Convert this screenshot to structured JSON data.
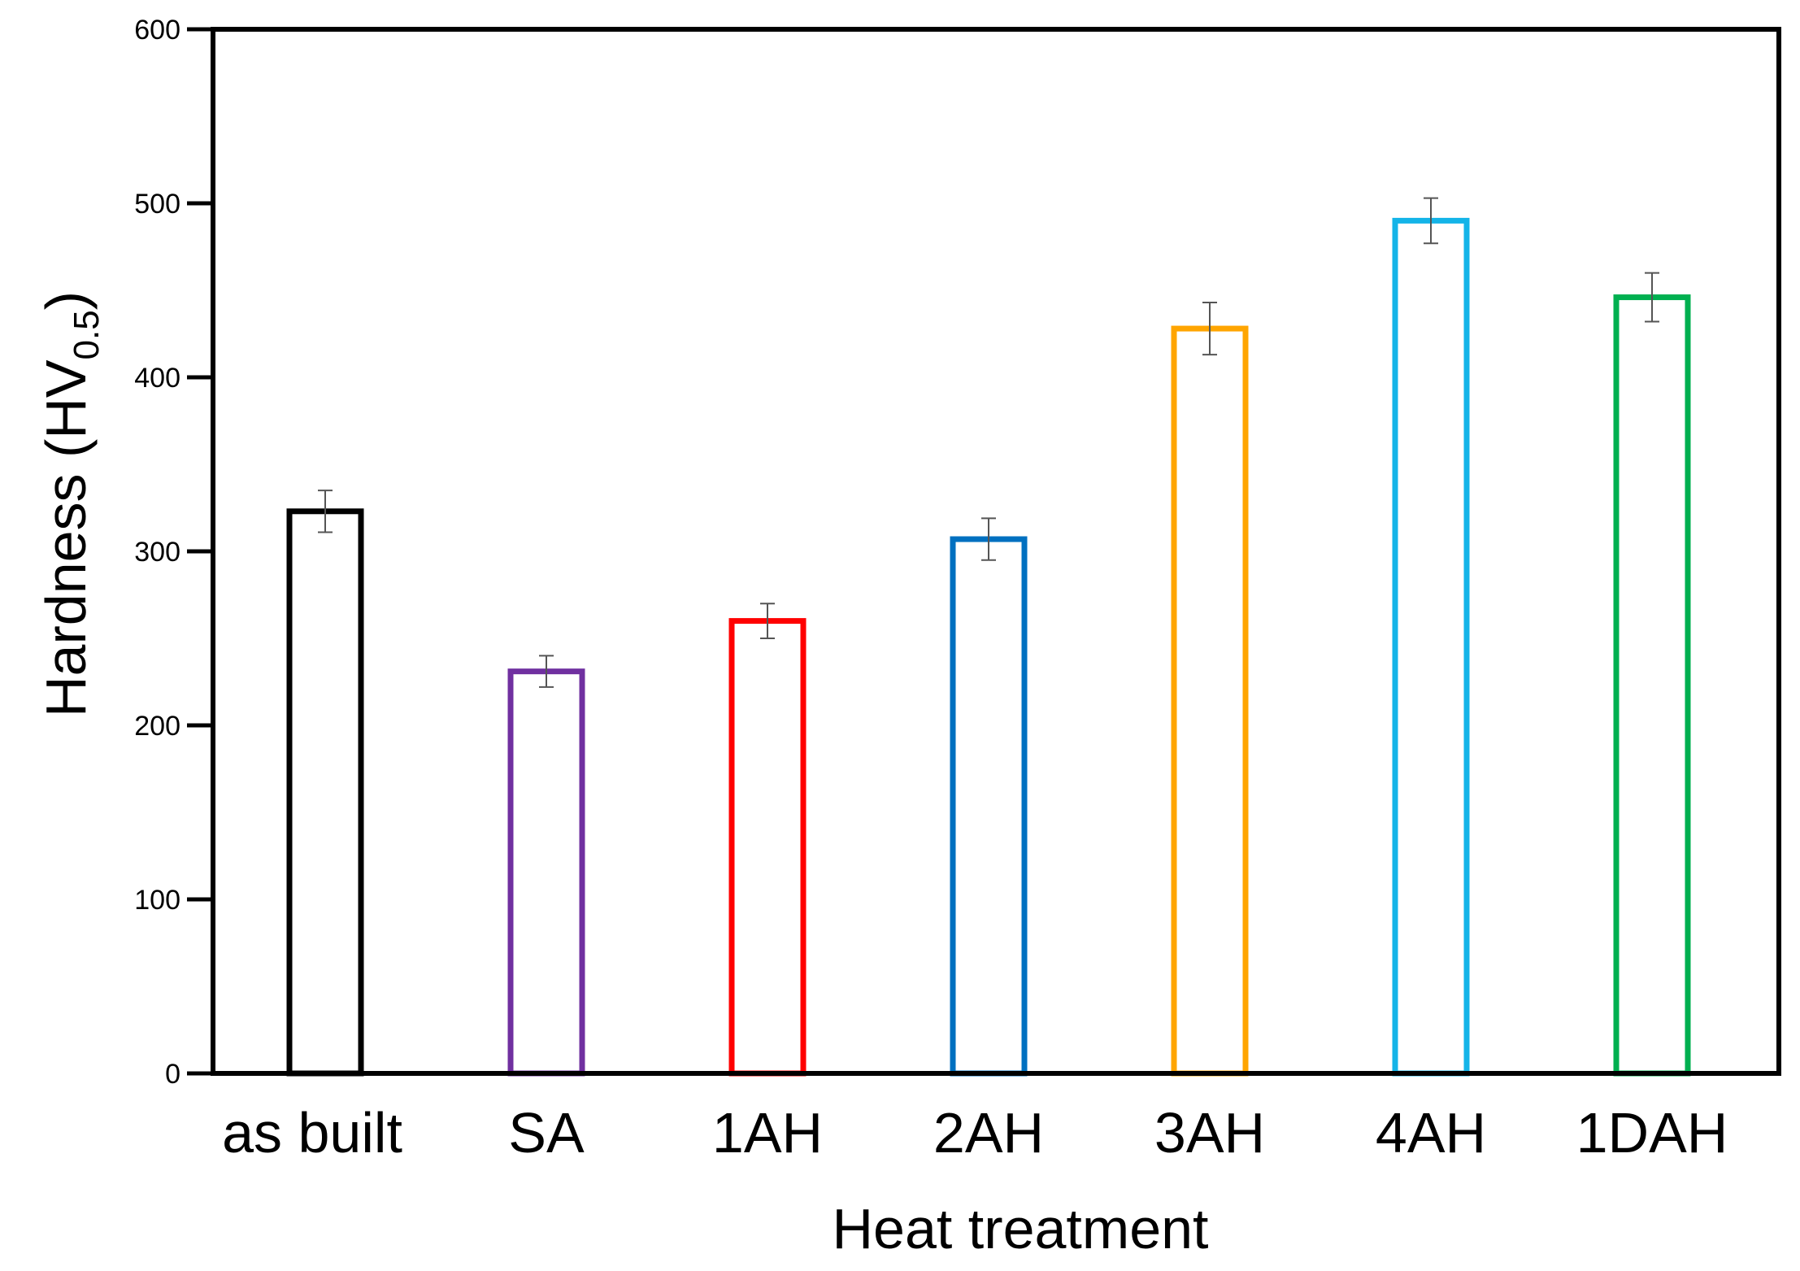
{
  "chart_data": {
    "type": "bar",
    "title": "",
    "xlabel": "Heat treatment",
    "ylabel": {
      "main": "Hardness (HV",
      "subscript": "0.5",
      "close": ")"
    },
    "ylim": [
      0,
      600
    ],
    "yticks": [
      0,
      100,
      200,
      300,
      400,
      500,
      600
    ],
    "grid": false,
    "legend": "none",
    "bar_style": "outline",
    "categories": [
      "as built",
      "SA",
      "1AH",
      "2AH",
      "3AH",
      "4AH",
      "1DAH"
    ],
    "values": [
      323,
      231,
      260,
      307,
      428,
      490,
      446
    ],
    "errors": [
      12,
      9,
      10,
      12,
      15,
      13,
      14
    ],
    "colors": [
      "#000000",
      "#7030A0",
      "#FF0000",
      "#0070C0",
      "#FFA500",
      "#14B4E8",
      "#00B050"
    ]
  }
}
